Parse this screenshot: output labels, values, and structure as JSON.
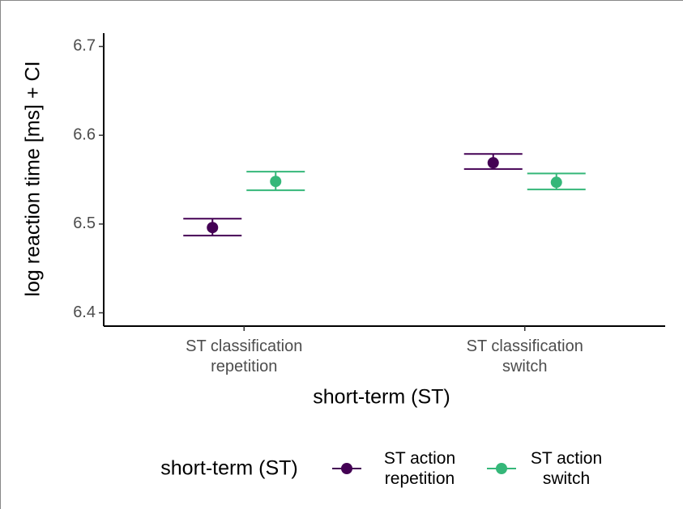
{
  "chart_data": {
    "type": "pointrange",
    "xlabel": "short-term (ST)",
    "ylabel": "log reaction time [ms] + CI",
    "categories": [
      "ST classification\nrepetition",
      "ST classification\nswitch"
    ],
    "legend_title": "short-term (ST)",
    "series": [
      {
        "name": "ST action\nrepetition",
        "color": "#440154",
        "values": [
          6.496,
          6.569
        ],
        "ci_lower": [
          6.487,
          6.562
        ],
        "ci_upper": [
          6.506,
          6.579
        ]
      },
      {
        "name": "ST action\nswitch",
        "color": "#35b779",
        "values": [
          6.548,
          6.547
        ],
        "ci_lower": [
          6.538,
          6.539
        ],
        "ci_upper": [
          6.559,
          6.557
        ]
      }
    ],
    "ylim": [
      6.385,
      6.715
    ],
    "yticks": [
      6.4,
      6.5,
      6.6,
      6.7
    ],
    "legend": "bottom"
  }
}
